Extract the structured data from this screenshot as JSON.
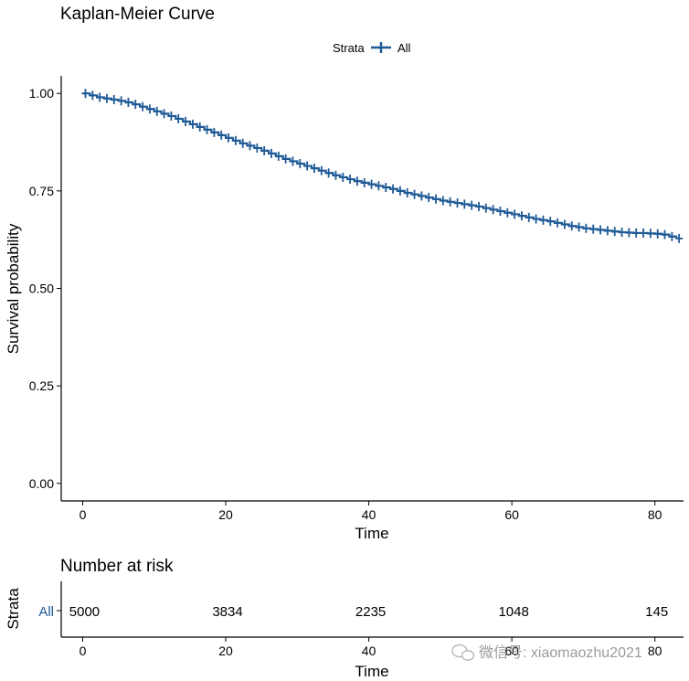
{
  "chart_data": [
    {
      "type": "line",
      "subtype": "kaplan-meier-step",
      "title": "Kaplan-Meier Curve",
      "xlabel": "Time",
      "ylabel": "Survival probability",
      "xlim": [
        -3,
        84
      ],
      "ylim": [
        -0.045,
        1.045
      ],
      "xticks": [
        0,
        20,
        40,
        60,
        80
      ],
      "yticks": [
        0.0,
        0.25,
        0.5,
        0.75,
        1.0
      ],
      "xtick_labels": [
        "0",
        "20",
        "40",
        "60",
        "80"
      ],
      "ytick_labels": [
        "0.00",
        "0.25",
        "0.50",
        "0.75",
        "1.00"
      ],
      "legend": {
        "title": "Strata",
        "position": "top",
        "entries": [
          "All"
        ]
      },
      "colors": {
        "All": "#1f5a96"
      },
      "series": [
        {
          "name": "All",
          "x": [
            0,
            1,
            2,
            3,
            4,
            5,
            6,
            7,
            8,
            9,
            10,
            11,
            12,
            13,
            14,
            15,
            16,
            17,
            18,
            19,
            20,
            21,
            22,
            23,
            24,
            25,
            26,
            27,
            28,
            29,
            30,
            31,
            32,
            33,
            34,
            35,
            36,
            37,
            38,
            39,
            40,
            41,
            42,
            43,
            44,
            45,
            46,
            47,
            48,
            49,
            50,
            51,
            52,
            53,
            54,
            55,
            56,
            57,
            58,
            59,
            60,
            61,
            62,
            63,
            64,
            65,
            66,
            67,
            68,
            69,
            70,
            71,
            72,
            73,
            74,
            75,
            76,
            77,
            78,
            79,
            80,
            81,
            82,
            83
          ],
          "values": [
            1.0,
            0.995,
            0.99,
            0.987,
            0.984,
            0.981,
            0.977,
            0.972,
            0.966,
            0.96,
            0.954,
            0.948,
            0.942,
            0.935,
            0.928,
            0.921,
            0.914,
            0.907,
            0.9,
            0.893,
            0.886,
            0.879,
            0.872,
            0.866,
            0.86,
            0.853,
            0.846,
            0.839,
            0.832,
            0.826,
            0.82,
            0.814,
            0.808,
            0.802,
            0.796,
            0.79,
            0.785,
            0.78,
            0.775,
            0.771,
            0.767,
            0.763,
            0.759,
            0.755,
            0.75,
            0.745,
            0.741,
            0.737,
            0.733,
            0.729,
            0.725,
            0.722,
            0.719,
            0.716,
            0.713,
            0.71,
            0.706,
            0.702,
            0.698,
            0.694,
            0.69,
            0.686,
            0.682,
            0.678,
            0.675,
            0.672,
            0.668,
            0.664,
            0.66,
            0.657,
            0.654,
            0.652,
            0.65,
            0.648,
            0.646,
            0.644,
            0.643,
            0.642,
            0.642,
            0.641,
            0.64,
            0.638,
            0.633,
            0.628
          ]
        }
      ]
    },
    {
      "type": "table",
      "title": "Number at risk",
      "xlabel": "Time",
      "ylabel": "Strata",
      "xlim": [
        -3,
        84
      ],
      "xticks": [
        0,
        20,
        40,
        60,
        80
      ],
      "xtick_labels": [
        "0",
        "20",
        "40",
        "60",
        "80"
      ],
      "rows": [
        {
          "stratum": "All",
          "times": [
            0,
            20,
            40,
            60,
            80
          ],
          "values": [
            "5000",
            "3834",
            "2235",
            "1048",
            "145"
          ]
        }
      ]
    }
  ],
  "watermark": {
    "text": "微信号: xiaomaozhu2021"
  }
}
